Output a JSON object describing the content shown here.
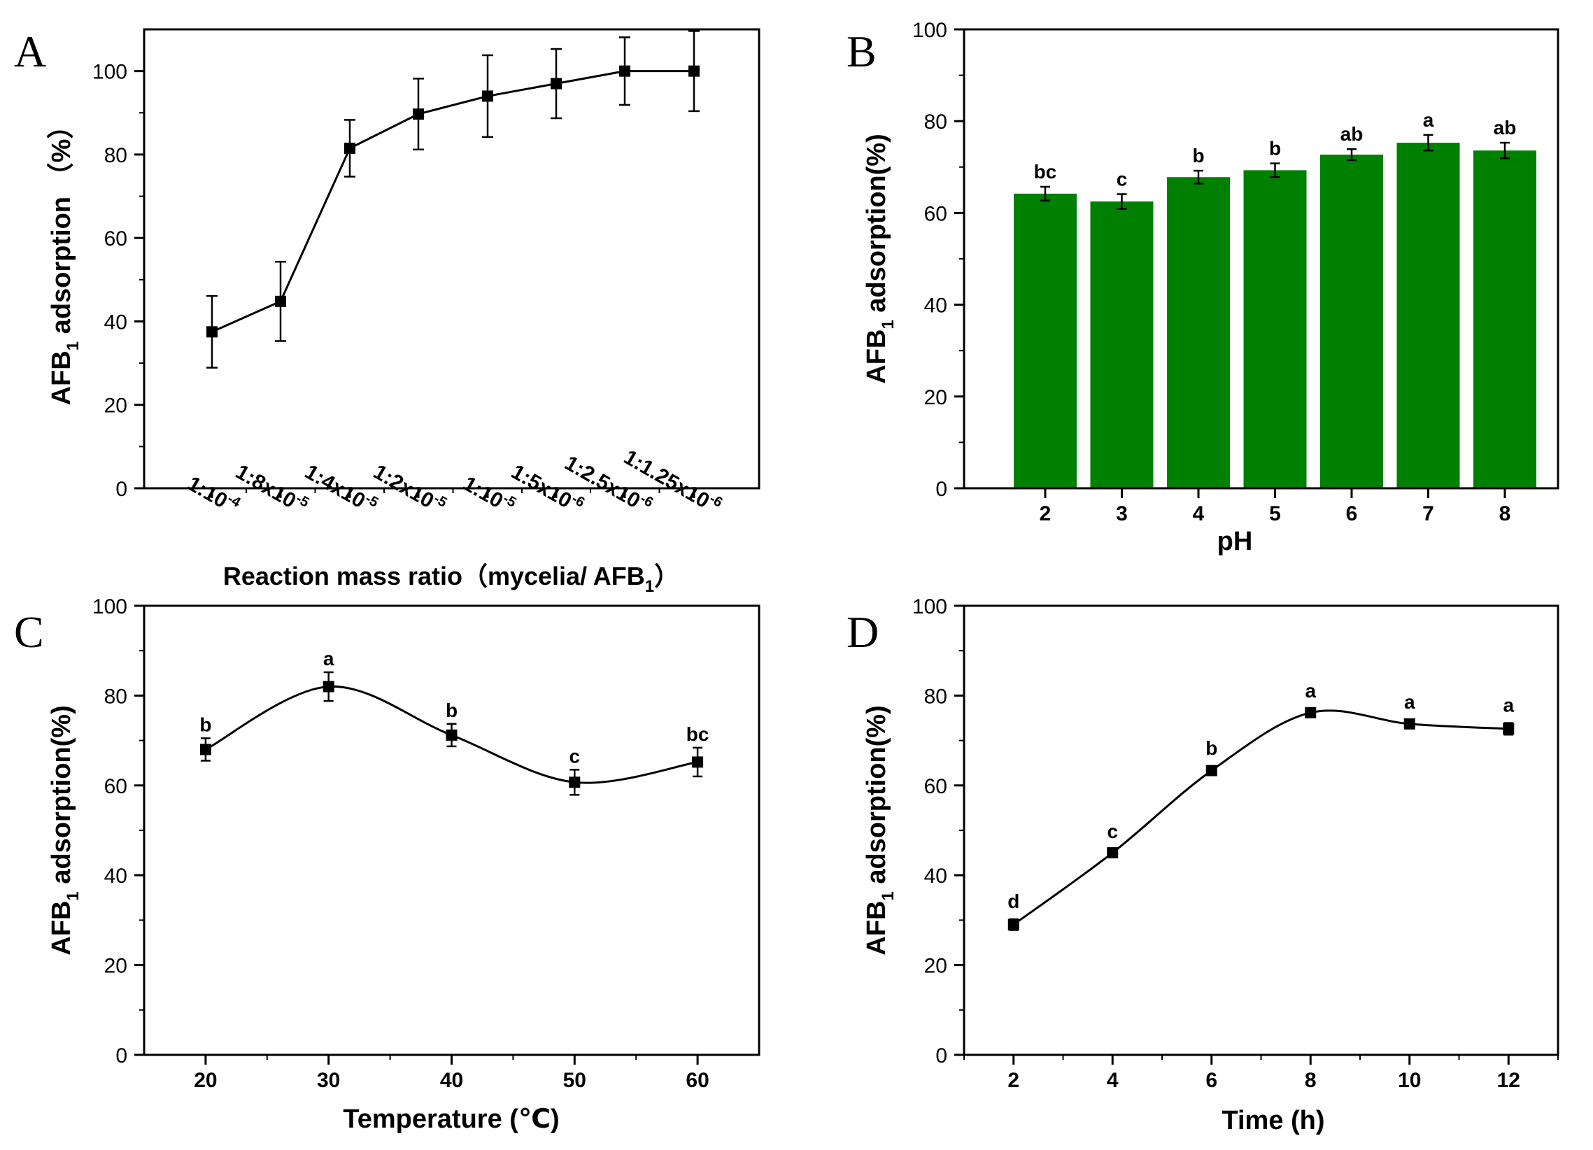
{
  "panels": [
    {
      "letter": "A",
      "ylabel_main": "AFB",
      "ylabel_sub": "1",
      "ylabel_tail": " adsorption （%）",
      "xlabel_main": "Reaction mass ratio（mycelia/ AFB",
      "xlabel_sub": "1",
      "xlabel_tail": "）",
      "yticks": [
        "0",
        "20",
        "40",
        "60",
        "80",
        "100"
      ],
      "xticks": [
        {
          "base": "1:10",
          "exp": "-4"
        },
        {
          "base": "1:8x10",
          "exp": "-5"
        },
        {
          "base": "1:4x10",
          "exp": "-5"
        },
        {
          "base": "1:2x10",
          "exp": "-5"
        },
        {
          "base": "1:10",
          "exp": "-5"
        },
        {
          "base": "1:5x10",
          "exp": "-6"
        },
        {
          "base": "1:2.5x10",
          "exp": "-6"
        },
        {
          "base": "1:1.25x10",
          "exp": "-6"
        }
      ]
    },
    {
      "letter": "B",
      "ylabel_main": "AFB",
      "ylabel_sub": "1",
      "ylabel_tail": " adsorption(%)",
      "xlabel": "pH",
      "yticks": [
        "0",
        "20",
        "40",
        "60",
        "80",
        "100"
      ],
      "xticks": [
        "2",
        "3",
        "4",
        "5",
        "6",
        "7",
        "8"
      ]
    },
    {
      "letter": "C",
      "ylabel_main": "AFB",
      "ylabel_sub": "1",
      "ylabel_tail": " adsorption(%)",
      "xlabel": "Temperature (℃)",
      "yticks": [
        "0",
        "20",
        "40",
        "60",
        "80",
        "100"
      ],
      "xticks": [
        "20",
        "30",
        "40",
        "50",
        "60"
      ]
    },
    {
      "letter": "D",
      "ylabel_main": "AFB",
      "ylabel_sub": "1",
      "ylabel_tail": " adsorption(%)",
      "xlabel": "Time (h)",
      "yticks": [
        "0",
        "20",
        "40",
        "60",
        "80",
        "100"
      ],
      "xticks": [
        "2",
        "4",
        "6",
        "8",
        "10",
        "12"
      ]
    }
  ],
  "chart_data": [
    {
      "type": "line",
      "panel": "A",
      "categories": [
        "1:10-4",
        "1:8x10-5",
        "1:4x10-5",
        "1:2x10-5",
        "1:10-5",
        "1:5x10-6",
        "1:2.5x10-6",
        "1:1.25x10-6"
      ],
      "values": [
        37.5,
        44.8,
        81.5,
        89.7,
        94,
        97,
        100,
        100
      ],
      "errors": [
        8.6,
        9.5,
        6.8,
        8.5,
        9.8,
        8.3,
        8.1,
        9.6
      ],
      "ylim": [
        0,
        110
      ],
      "grid": false,
      "marker": "square",
      "color": "#000000"
    },
    {
      "type": "bar",
      "panel": "B",
      "categories": [
        "2",
        "3",
        "4",
        "5",
        "6",
        "7",
        "8"
      ],
      "values": [
        64.2,
        62.5,
        67.8,
        69.3,
        72.7,
        75.3,
        73.6
      ],
      "errors": [
        1.5,
        1.6,
        1.4,
        1.5,
        1.2,
        1.7,
        1.7
      ],
      "annotations": [
        "bc",
        "c",
        "b",
        "b",
        "ab",
        "a",
        "ab"
      ],
      "ylim": [
        0,
        100
      ],
      "grid": false,
      "color": "#008000"
    },
    {
      "type": "line",
      "panel": "C",
      "x": [
        20,
        30,
        40,
        50,
        60
      ],
      "values": [
        68,
        82,
        71.2,
        60.7,
        65.2
      ],
      "errors": [
        2.5,
        3.2,
        2.5,
        2.8,
        3.2
      ],
      "annotations": [
        "b",
        "a",
        "b",
        "c",
        "bc"
      ],
      "xlim": [
        15,
        65
      ],
      "ylim": [
        0,
        100
      ],
      "grid": false,
      "marker": "square",
      "smooth": true,
      "color": "#000000"
    },
    {
      "type": "line",
      "panel": "D",
      "x": [
        2,
        4,
        6,
        8,
        10,
        12
      ],
      "values": [
        29,
        45,
        63.3,
        76.2,
        73.7,
        72.6
      ],
      "errors": [
        1.2,
        0.8,
        1.0,
        0.9,
        0.9,
        1.3
      ],
      "annotations": [
        "d",
        "c",
        "b",
        "a",
        "a",
        "a"
      ],
      "xlim": [
        1,
        13
      ],
      "ylim": [
        0,
        100
      ],
      "grid": false,
      "marker": "square",
      "smooth": true,
      "color": "#000000"
    }
  ]
}
